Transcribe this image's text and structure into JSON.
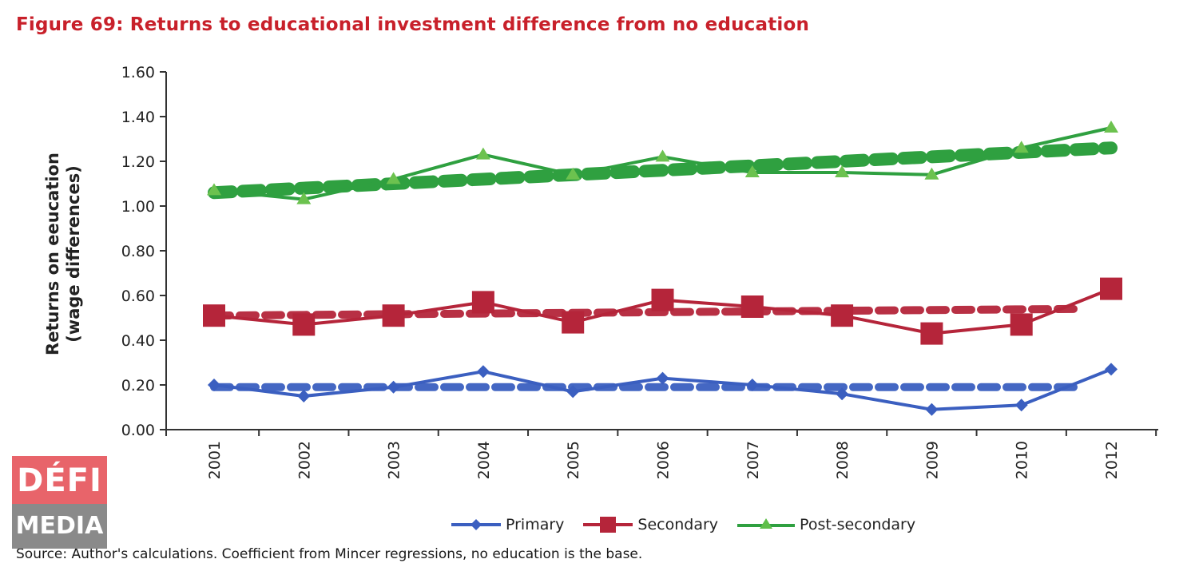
{
  "title": "Figure 69: Returns to educational investment difference from no education",
  "source": "Source: Author's calculations. Coefficient from Mincer regressions, no education is the base.",
  "logo": {
    "line1": "DÉFI",
    "line2": "MEDIA"
  },
  "colors": {
    "primary": "#3b5fc0",
    "secondary": "#b5253a",
    "post_secondary": "#2fa040",
    "title": "#c8202a"
  },
  "chart_data": {
    "type": "line",
    "title": "Figure 69: Returns to educational investment difference from no education",
    "ylabel": [
      "Returns on eeucation",
      "(wage differences)"
    ],
    "xlabel": "",
    "categories": [
      "2001",
      "2002",
      "2003",
      "2004",
      "2005",
      "2006",
      "2007",
      "2008",
      "2009",
      "2010",
      "2012"
    ],
    "yticks": [
      "0.00",
      "0.20",
      "0.40",
      "0.60",
      "0.80",
      "1.00",
      "1.20",
      "1.40",
      "1.60"
    ],
    "ylim": [
      0,
      1.6
    ],
    "legend_position": "bottom",
    "series": [
      {
        "name": "Primary",
        "key": "primary",
        "marker": "diamond",
        "values": [
          0.2,
          0.15,
          0.19,
          0.26,
          0.17,
          0.23,
          0.2,
          0.16,
          0.09,
          0.11,
          0.27
        ],
        "trend": [
          0.19,
          0.19
        ]
      },
      {
        "name": "Secondary",
        "key": "secondary",
        "marker": "square",
        "values": [
          0.51,
          0.47,
          0.51,
          0.57,
          0.48,
          0.58,
          0.55,
          0.51,
          0.43,
          0.47,
          0.63
        ],
        "trend": [
          0.51,
          0.54
        ]
      },
      {
        "name": "Post-secondary",
        "key": "post_secondary",
        "marker": "triangle",
        "values": [
          1.07,
          1.03,
          1.12,
          1.23,
          1.14,
          1.22,
          1.15,
          1.15,
          1.14,
          1.26,
          1.35
        ],
        "trend": [
          1.06,
          1.26
        ]
      }
    ]
  }
}
